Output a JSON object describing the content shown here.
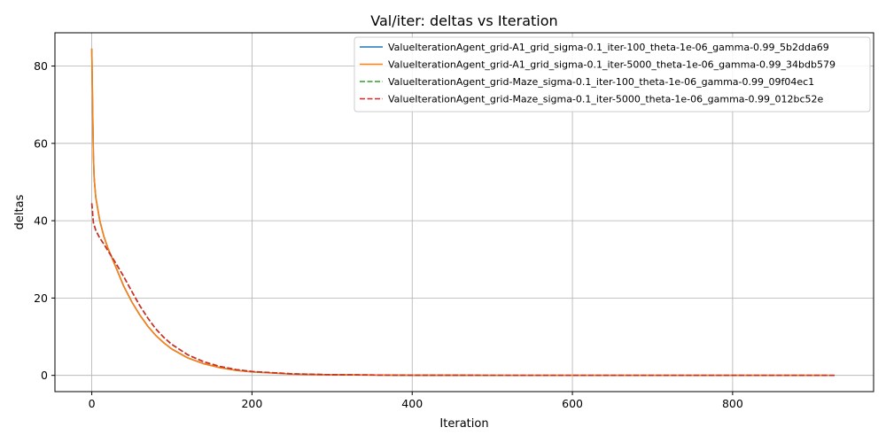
{
  "chart_data": {
    "type": "line",
    "title": "Val/iter: deltas vs Iteration",
    "xlabel": "Iteration",
    "ylabel": "deltas",
    "xlim": [
      -46,
      976
    ],
    "ylim": [
      -4.2,
      88.6
    ],
    "xticks": [
      0,
      200,
      400,
      600,
      800
    ],
    "yticks": [
      0,
      20,
      40,
      60,
      80
    ],
    "xtick_labels": [
      "0",
      "200",
      "400",
      "600",
      "800"
    ],
    "ytick_labels": [
      "0",
      "20",
      "40",
      "60",
      "80"
    ],
    "grid": true,
    "legend_position": "top-right",
    "series": [
      {
        "name": "ValueIterationAgent_grid-A1_grid_sigma-0.1_iter-100_theta-1e-06_gamma-0.99_5b2dda69",
        "color": "#1f77b4",
        "dash": "solid",
        "points": [
          [
            0,
            84.5
          ],
          [
            1,
            70
          ],
          [
            2,
            57
          ],
          [
            3,
            51
          ],
          [
            5,
            46
          ],
          [
            10,
            40
          ],
          [
            15,
            36
          ],
          [
            20,
            33
          ],
          [
            30,
            28
          ],
          [
            40,
            23
          ],
          [
            50,
            19
          ],
          [
            60,
            15.6
          ],
          [
            70,
            12.7
          ],
          [
            80,
            10.3
          ],
          [
            90,
            8.4
          ],
          [
            100,
            6.8
          ],
          [
            120,
            4.5
          ],
          [
            140,
            3.0
          ],
          [
            160,
            2.0
          ],
          [
            180,
            1.3
          ],
          [
            200,
            0.9
          ],
          [
            250,
            0.35
          ],
          [
            300,
            0.15
          ],
          [
            400,
            0.03
          ],
          [
            500,
            0.01
          ],
          [
            600,
            0.0
          ],
          [
            700,
            0.0
          ],
          [
            800,
            0.0
          ],
          [
            920,
            0.0
          ]
        ]
      },
      {
        "name": "ValueIterationAgent_grid-A1_grid_sigma-0.1_iter-5000_theta-1e-06_gamma-0.99_34bdb579",
        "color": "#ff7f0e",
        "dash": "solid",
        "points": [
          [
            0,
            84.5
          ],
          [
            1,
            70
          ],
          [
            2,
            57
          ],
          [
            3,
            51
          ],
          [
            5,
            46
          ],
          [
            10,
            40
          ],
          [
            15,
            36
          ],
          [
            20,
            33
          ],
          [
            30,
            28
          ],
          [
            40,
            23
          ],
          [
            50,
            19
          ],
          [
            60,
            15.6
          ],
          [
            70,
            12.7
          ],
          [
            80,
            10.3
          ],
          [
            90,
            8.4
          ],
          [
            100,
            6.8
          ],
          [
            120,
            4.5
          ],
          [
            140,
            3.0
          ],
          [
            160,
            2.0
          ],
          [
            180,
            1.3
          ],
          [
            200,
            0.9
          ],
          [
            250,
            0.35
          ],
          [
            300,
            0.15
          ],
          [
            400,
            0.03
          ],
          [
            500,
            0.01
          ],
          [
            600,
            0.0
          ],
          [
            700,
            0.0
          ],
          [
            800,
            0.0
          ],
          [
            920,
            0.0
          ]
        ]
      },
      {
        "name": "ValueIterationAgent_grid-Maze_sigma-0.1_iter-100_theta-1e-06_gamma-0.99_09f04ec1",
        "color": "#2ca02c",
        "dash": "dashed",
        "points": [
          [
            0,
            44.5
          ],
          [
            2,
            39.5
          ],
          [
            5,
            37.5
          ],
          [
            10,
            35.5
          ],
          [
            15,
            34
          ],
          [
            20,
            32.3
          ],
          [
            30,
            29
          ],
          [
            40,
            25.5
          ],
          [
            50,
            21.7
          ],
          [
            60,
            18
          ],
          [
            70,
            14.8
          ],
          [
            80,
            12
          ],
          [
            90,
            9.8
          ],
          [
            100,
            8
          ],
          [
            120,
            5.3
          ],
          [
            140,
            3.5
          ],
          [
            160,
            2.3
          ],
          [
            180,
            1.5
          ],
          [
            200,
            1.0
          ],
          [
            250,
            0.4
          ],
          [
            300,
            0.17
          ],
          [
            400,
            0.03
          ],
          [
            500,
            0.01
          ],
          [
            600,
            0.0
          ],
          [
            700,
            0.0
          ],
          [
            800,
            0.0
          ],
          [
            930,
            0.0
          ]
        ]
      },
      {
        "name": "ValueIterationAgent_grid-Maze_sigma-0.1_iter-5000_theta-1e-06_gamma-0.99_012bc52e",
        "color": "#d62728",
        "dash": "dashed",
        "points": [
          [
            0,
            44.5
          ],
          [
            2,
            39.5
          ],
          [
            5,
            37.5
          ],
          [
            10,
            35.5
          ],
          [
            15,
            34
          ],
          [
            20,
            32.3
          ],
          [
            30,
            29
          ],
          [
            40,
            25.5
          ],
          [
            50,
            21.7
          ],
          [
            60,
            18
          ],
          [
            70,
            14.8
          ],
          [
            80,
            12
          ],
          [
            90,
            9.8
          ],
          [
            100,
            8
          ],
          [
            120,
            5.3
          ],
          [
            140,
            3.5
          ],
          [
            160,
            2.3
          ],
          [
            180,
            1.5
          ],
          [
            200,
            1.0
          ],
          [
            250,
            0.4
          ],
          [
            300,
            0.17
          ],
          [
            400,
            0.03
          ],
          [
            500,
            0.01
          ],
          [
            600,
            0.0
          ],
          [
            700,
            0.0
          ],
          [
            800,
            0.0
          ],
          [
            930,
            0.0
          ]
        ]
      }
    ]
  }
}
